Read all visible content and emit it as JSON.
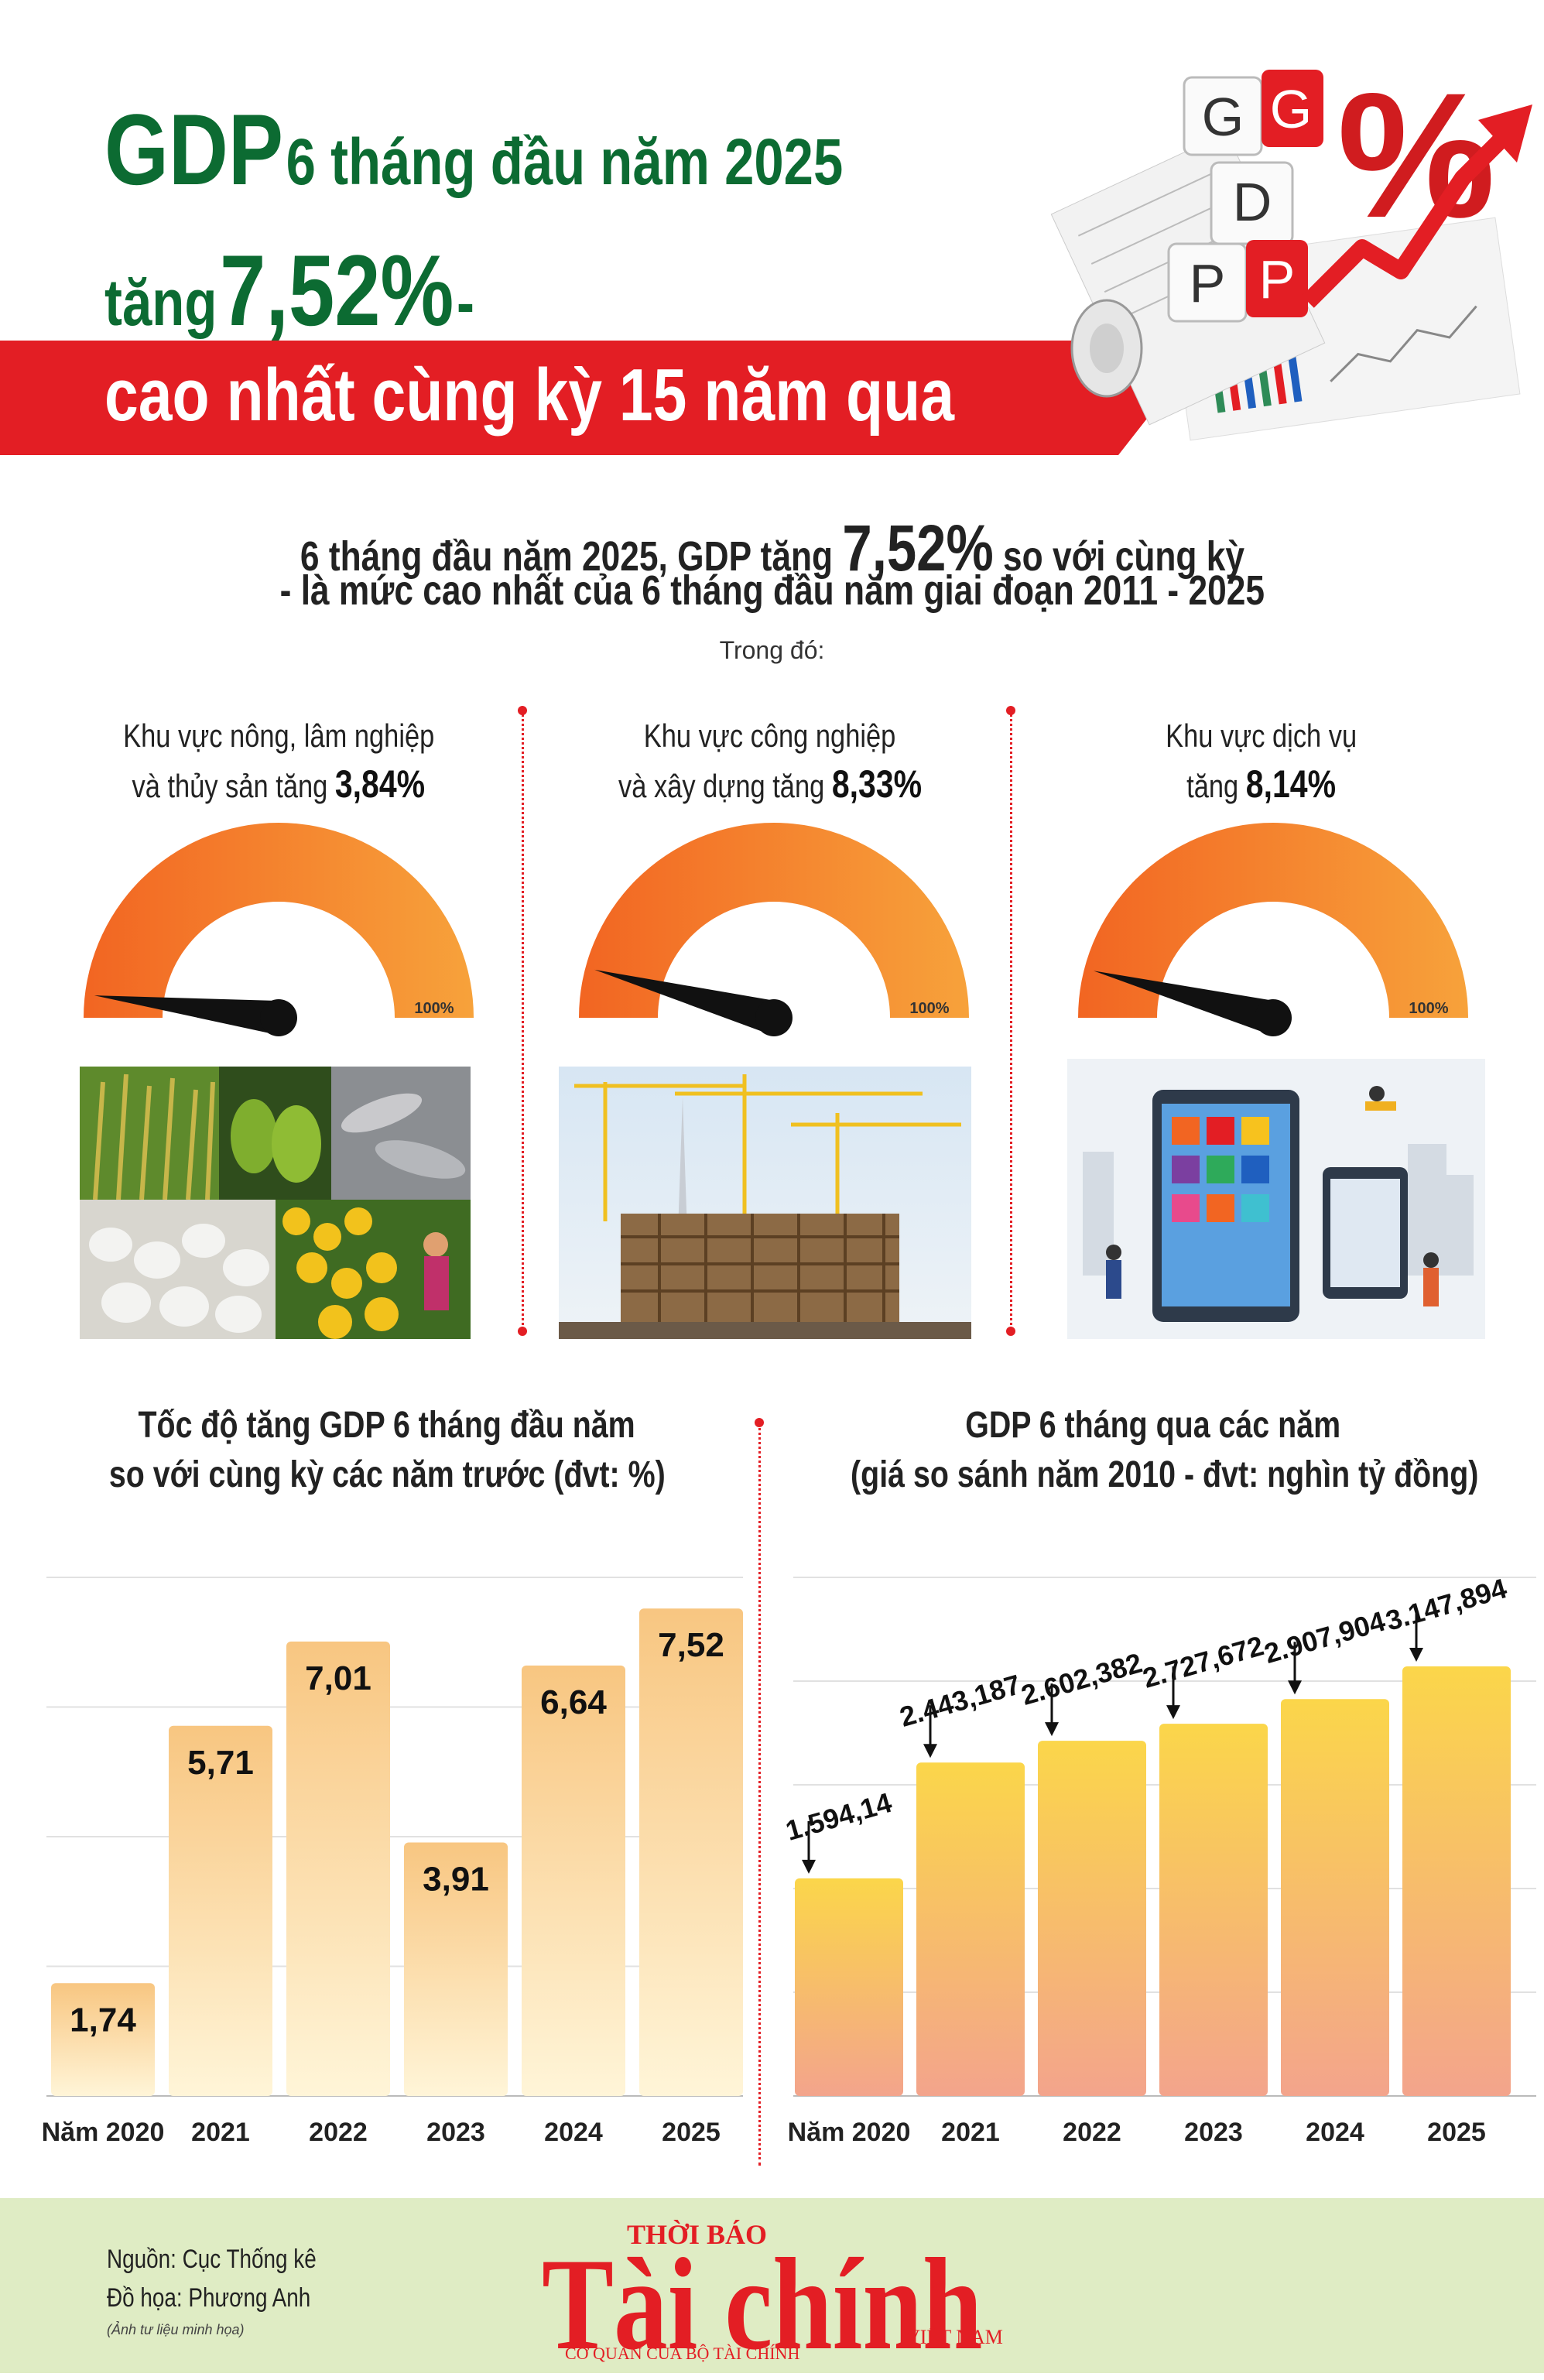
{
  "header": {
    "gdp": "GDP",
    "line1_rest": "6 tháng đầu năm 2025",
    "line2_pre": "tăng",
    "line2_value": "7,52%",
    "line2_dash": "-",
    "banner": "cao nhất cùng kỳ 15 năm qua",
    "cubes": [
      "G",
      "G",
      "D",
      "P",
      "P"
    ],
    "percent_sign": "%"
  },
  "summary": {
    "line1_pre": "6 tháng đầu năm 2025, GDP tăng",
    "line1_value": "7,52%",
    "line1_post": "so với cùng kỳ",
    "line2": "- là mức cao nhất của 6 tháng đầu năm giai đoạn 2011 - 2025",
    "trong_do": "Trong đó:"
  },
  "sectors": [
    {
      "line1": "Khu vực nông, lâm nghiệp",
      "line2_pre": "và thủy sản tăng",
      "value": "3,84%",
      "gauge_fraction": 0.0384,
      "gauge_max": "100%"
    },
    {
      "line1": "Khu vực công nghiệp",
      "line2_pre": "và xây dựng tăng",
      "value": "8,33%",
      "gauge_fraction": 0.0833,
      "gauge_max": "100%"
    },
    {
      "line1": "Khu vực dịch vụ",
      "line2_pre": "tăng",
      "value": "8,14%",
      "gauge_fraction": 0.0814,
      "gauge_max": "100%"
    }
  ],
  "colors": {
    "green": "#0c6b32",
    "red": "#e31e24",
    "orange": "#f26522",
    "gauge_light": "#f7a23b",
    "bar_top": "#f8c681",
    "bar_bottom": "#fff5d8",
    "bar2_top": "#fbd64a",
    "bar2_bottom": "#f3a48c",
    "footer_bg": "#dfecc4"
  },
  "chart_data": [
    {
      "type": "bar",
      "title": "Tốc độ tăng GDP 6 tháng đầu năm",
      "subtitle": "so với cùng kỳ các năm trước (đvt: %)",
      "categories": [
        "Năm 2020",
        "2021",
        "2022",
        "2023",
        "2024",
        "2025"
      ],
      "values": [
        1.74,
        5.71,
        7.01,
        3.91,
        6.64,
        7.52
      ],
      "labels": [
        "1,74",
        "5,71",
        "7,01",
        "3,91",
        "6,64",
        "7,52"
      ],
      "ylim": [
        0,
        8
      ],
      "grid": true
    },
    {
      "type": "bar",
      "title": "GDP 6 tháng qua các năm",
      "subtitle": "(giá so sánh năm 2010 - đvt: nghìn tỷ đồng)",
      "categories": [
        "Năm 2020",
        "2021",
        "2022",
        "2023",
        "2024",
        "2025"
      ],
      "values": [
        1594.14,
        2443.187,
        2602.382,
        2727.672,
        2907.904,
        3147.894
      ],
      "labels": [
        "1.594,14",
        "2.443,187",
        "2.602,382",
        "2.727,672",
        "2.907,904",
        "3.147,894"
      ],
      "ylim": [
        0,
        3800
      ],
      "grid": true
    }
  ],
  "footer": {
    "source": "Nguồn: Cục Thống kê",
    "design": "Đồ họa: Phương Anh",
    "note": "(Ảnh tư liệu minh họa)",
    "logo_top": "THỜI BÁO",
    "logo_main": "Tài chính",
    "logo_vn": "VIỆT NAM",
    "logo_sub": "CƠ QUAN CỦA BỘ TÀI CHÍNH"
  }
}
